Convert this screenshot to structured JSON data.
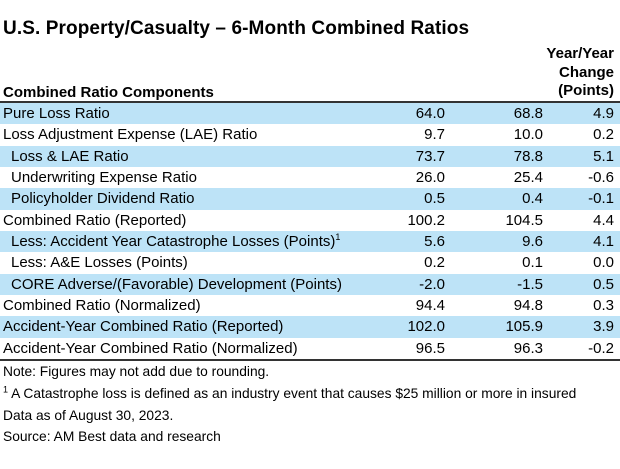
{
  "title": "U.S. Property/Casualty – 6-Month Combined Ratios",
  "colors": {
    "row_shade": "#BDE3F7",
    "rule": "#333333",
    "text": "#000000"
  },
  "table": {
    "components_header": "Combined Ratio Components",
    "change_header_line1": "Year/Year",
    "change_header_line2": "Change",
    "change_header_line3": "(Points)",
    "rows": [
      {
        "label": "Pure Loss Ratio",
        "sup": "",
        "indent": false,
        "shaded": true,
        "v1": "64.0",
        "v2": "68.8",
        "change": "4.9"
      },
      {
        "label": "Loss Adjustment Expense (LAE) Ratio",
        "sup": "",
        "indent": false,
        "shaded": false,
        "v1": "9.7",
        "v2": "10.0",
        "change": "0.2"
      },
      {
        "label": "Loss & LAE Ratio",
        "sup": "",
        "indent": true,
        "shaded": true,
        "v1": "73.7",
        "v2": "78.8",
        "change": "5.1"
      },
      {
        "label": "Underwriting Expense Ratio",
        "sup": "",
        "indent": true,
        "shaded": false,
        "v1": "26.0",
        "v2": "25.4",
        "change": "-0.6"
      },
      {
        "label": "Policyholder Dividend Ratio",
        "sup": "",
        "indent": true,
        "shaded": true,
        "v1": "0.5",
        "v2": "0.4",
        "change": "-0.1"
      },
      {
        "label": "Combined Ratio (Reported)",
        "sup": "",
        "indent": false,
        "shaded": false,
        "v1": "100.2",
        "v2": "104.5",
        "change": "4.4"
      },
      {
        "label": "Less: Accident Year Catastrophe Losses (Points)",
        "sup": "1",
        "indent": true,
        "shaded": true,
        "v1": "5.6",
        "v2": "9.6",
        "change": "4.1"
      },
      {
        "label": "Less: A&E Losses (Points)",
        "sup": "",
        "indent": true,
        "shaded": false,
        "v1": "0.2",
        "v2": "0.1",
        "change": "0.0"
      },
      {
        "label": "CORE Adverse/(Favorable) Development (Points)",
        "sup": "",
        "indent": true,
        "shaded": true,
        "v1": "-2.0",
        "v2": "-1.5",
        "change": "0.5"
      },
      {
        "label": "Combined Ratio (Normalized)",
        "sup": "",
        "indent": false,
        "shaded": false,
        "v1": "94.4",
        "v2": "94.8",
        "change": "0.3"
      },
      {
        "label": "Accident-Year Combined Ratio (Reported)",
        "sup": "",
        "indent": false,
        "shaded": true,
        "v1": "102.0",
        "v2": "105.9",
        "change": "3.9"
      },
      {
        "label": "Accident-Year Combined Ratio (Normalized)",
        "sup": "",
        "indent": false,
        "shaded": false,
        "v1": "96.5",
        "v2": "96.3",
        "change": "-0.2"
      }
    ]
  },
  "footer": {
    "note": "Note: Figures may not add due to rounding.",
    "footnote_sup": "1",
    "footnote_text": " A Catastrophe loss is defined as an industry event that causes $25 million or more in insured",
    "data_as_of": "Data as of August 30, 2023.",
    "source": "Source: AM Best data and research"
  },
  "chart_data": {
    "type": "table",
    "title": "U.S. Property/Casualty – 6-Month Combined Ratios",
    "columns": [
      "Combined Ratio Components",
      "",
      "",
      "Year/Year Change (Points)"
    ],
    "rows": [
      [
        "Pure Loss Ratio",
        64.0,
        68.8,
        4.9
      ],
      [
        "Loss Adjustment Expense (LAE) Ratio",
        9.7,
        10.0,
        0.2
      ],
      [
        "Loss & LAE Ratio",
        73.7,
        78.8,
        5.1
      ],
      [
        "Underwriting Expense Ratio",
        26.0,
        25.4,
        -0.6
      ],
      [
        "Policyholder Dividend Ratio",
        0.5,
        0.4,
        -0.1
      ],
      [
        "Combined Ratio (Reported)",
        100.2,
        104.5,
        4.4
      ],
      [
        "Less: Accident Year Catastrophe Losses (Points)¹",
        5.6,
        9.6,
        4.1
      ],
      [
        "Less: A&E Losses (Points)",
        0.2,
        0.1,
        0.0
      ],
      [
        "CORE Adverse/(Favorable) Development (Points)",
        -2.0,
        -1.5,
        0.5
      ],
      [
        "Combined Ratio (Normalized)",
        94.4,
        94.8,
        0.3
      ],
      [
        "Accident-Year Combined Ratio (Reported)",
        102.0,
        105.9,
        3.9
      ],
      [
        "Accident-Year Combined Ratio (Normalized)",
        96.5,
        96.3,
        -0.2
      ]
    ],
    "notes": [
      "Note: Figures may not add due to rounding.",
      "¹ A Catastrophe loss is defined as an industry event that causes $25 million or more in insured",
      "Data as of August 30, 2023.",
      "Source: AM Best data and research"
    ],
    "layout": {
      "shaded_row_indexes": [
        0,
        2,
        4,
        6,
        8,
        10
      ],
      "indented_row_indexes": [
        2,
        3,
        4,
        6,
        7,
        8
      ],
      "value_columns_right_aligned": true
    }
  }
}
